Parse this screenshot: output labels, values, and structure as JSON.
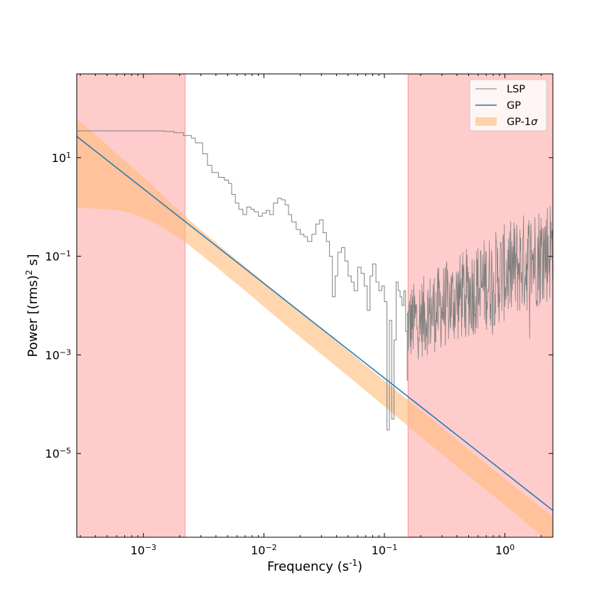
{
  "chart_data": {
    "type": "line",
    "title": "",
    "xlabel": "Frequency (s$^{-1}$)",
    "ylabel": "Power [(rms)$^2$ s]",
    "xscale": "log",
    "yscale": "log",
    "xlim": [
      0.00028,
      2.5
    ],
    "ylim": [
      2e-07,
      500
    ],
    "xticks": [
      {
        "value": 0.001,
        "label": "10^-3"
      },
      {
        "value": 0.01,
        "label": "10^-2"
      },
      {
        "value": 0.1,
        "label": "10^-1"
      },
      {
        "value": 1,
        "label": "10^0"
      }
    ],
    "yticks": [
      {
        "value": 1e-05,
        "label": "10^-5"
      },
      {
        "value": 0.001,
        "label": "10^-3"
      },
      {
        "value": 0.1,
        "label": "10^-1"
      },
      {
        "value": 10,
        "label": "10^1"
      }
    ],
    "legend": {
      "placement": "top-right"
    },
    "excluded_regions": [
      {
        "x": [
          0.00028,
          0.00222
        ],
        "color": "#ff9999"
      },
      {
        "x": [
          0.157,
          2.5
        ],
        "color": "#ff9999"
      }
    ],
    "series": [
      {
        "name": "LSP",
        "color": "#808080",
        "style": "step",
        "x": [
          0.00028,
          0.00035,
          0.00045,
          0.0006,
          0.0008,
          0.0011,
          0.0015,
          0.0018,
          0.00215,
          0.0025,
          0.0027,
          0.0031,
          0.0034,
          0.0037,
          0.0042,
          0.0047,
          0.0051,
          0.0054,
          0.0058,
          0.0062,
          0.0067,
          0.0072,
          0.0078,
          0.0083,
          0.009,
          0.0097,
          0.0105,
          0.0112,
          0.012,
          0.013,
          0.014,
          0.015,
          0.016,
          0.017,
          0.0185,
          0.02,
          0.0215,
          0.023,
          0.025,
          0.027,
          0.029,
          0.031,
          0.033,
          0.035,
          0.037,
          0.039,
          0.041,
          0.044,
          0.047,
          0.05,
          0.053,
          0.056,
          0.06,
          0.064,
          0.068,
          0.072,
          0.076,
          0.08,
          0.085,
          0.09,
          0.095,
          0.1,
          0.105,
          0.11,
          0.115,
          0.12,
          0.125,
          0.13,
          0.135,
          0.14,
          0.145,
          0.15,
          0.155
        ],
        "y": [
          35,
          35,
          35,
          35,
          35,
          35,
          34,
          32,
          28,
          25,
          20,
          12,
          7,
          5,
          4,
          3.5,
          3,
          1.8,
          1.2,
          0.9,
          0.7,
          1.0,
          0.9,
          0.8,
          0.65,
          0.75,
          0.85,
          0.7,
          1.2,
          1.5,
          1.4,
          1.1,
          0.7,
          0.5,
          0.35,
          0.28,
          0.25,
          0.2,
          0.28,
          0.45,
          0.55,
          0.3,
          0.2,
          0.1,
          0.015,
          0.04,
          0.12,
          0.15,
          0.08,
          0.04,
          0.03,
          0.02,
          0.06,
          0.045,
          0.025,
          0.008,
          0.04,
          0.07,
          0.03,
          0.02,
          0.025,
          0.012,
          3e-05,
          0.005,
          5e-05,
          0.002,
          0.03,
          0.02,
          0.015,
          0.01,
          0.02,
          0.003,
          0.0003
        ]
      },
      {
        "name": "GP",
        "color": "#1f77b4",
        "style": "line",
        "x": [
          0.00028,
          2.5
        ],
        "y": [
          27,
          7e-07
        ]
      },
      {
        "name": "GP-1$\\sigma$",
        "color": "#ffbb78",
        "style": "band",
        "x": [
          0.00028,
          0.0004,
          0.0006,
          0.0008,
          0.001,
          0.0013,
          0.0016,
          0.002,
          0.0025,
          0.003,
          0.004,
          0.005,
          0.007,
          0.01,
          0.02,
          0.05,
          0.1,
          0.2,
          0.5,
          1.0,
          2.5
        ],
        "y_upper": [
          60,
          30,
          12,
          6.5,
          4,
          2.2,
          1.35,
          0.82,
          0.5,
          0.34,
          0.19,
          0.12,
          0.062,
          0.03,
          0.0075,
          0.0012,
          0.0003,
          7.5e-05,
          1.2e-05,
          3e-06,
          5.2e-07
        ],
        "y_lower": [
          0.95,
          0.93,
          0.87,
          0.75,
          0.6,
          0.45,
          0.33,
          0.23,
          0.155,
          0.108,
          0.062,
          0.039,
          0.02,
          0.0095,
          0.0023,
          0.00037,
          9e-05,
          2.2e-05,
          3.5e-06,
          9e-07,
          1.4e-07
        ]
      }
    ]
  }
}
